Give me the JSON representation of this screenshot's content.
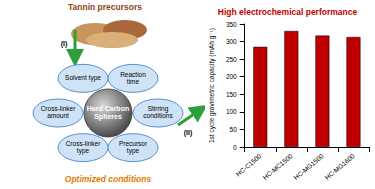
{
  "diagram": {
    "top_label": "Tannin precursors",
    "step1": "(I)",
    "step2": "(II)",
    "center": "Hard Carbon Spheres",
    "conditions": [
      "Solvent type",
      "Reaction time",
      "Stirring conditions",
      "Precursor type",
      "Cross-linker type",
      "Cross-linker amount"
    ],
    "bottom_label": "Optimized conditions"
  },
  "chart_data": {
    "type": "bar",
    "title": "High electrochemical performance",
    "y_label": "1st cycle gravimetric capacity (mAh g⁻¹)",
    "categories": [
      "HC-C1500",
      "HC-MC1500",
      "HC-MG1500",
      "HC-MG1600"
    ],
    "values": [
      285,
      330,
      317,
      313
    ],
    "color": "#c00000",
    "ylim": [
      0,
      350
    ],
    "yticks": [
      0,
      50,
      100,
      150,
      200,
      250,
      300,
      350
    ],
    "grid": false
  }
}
